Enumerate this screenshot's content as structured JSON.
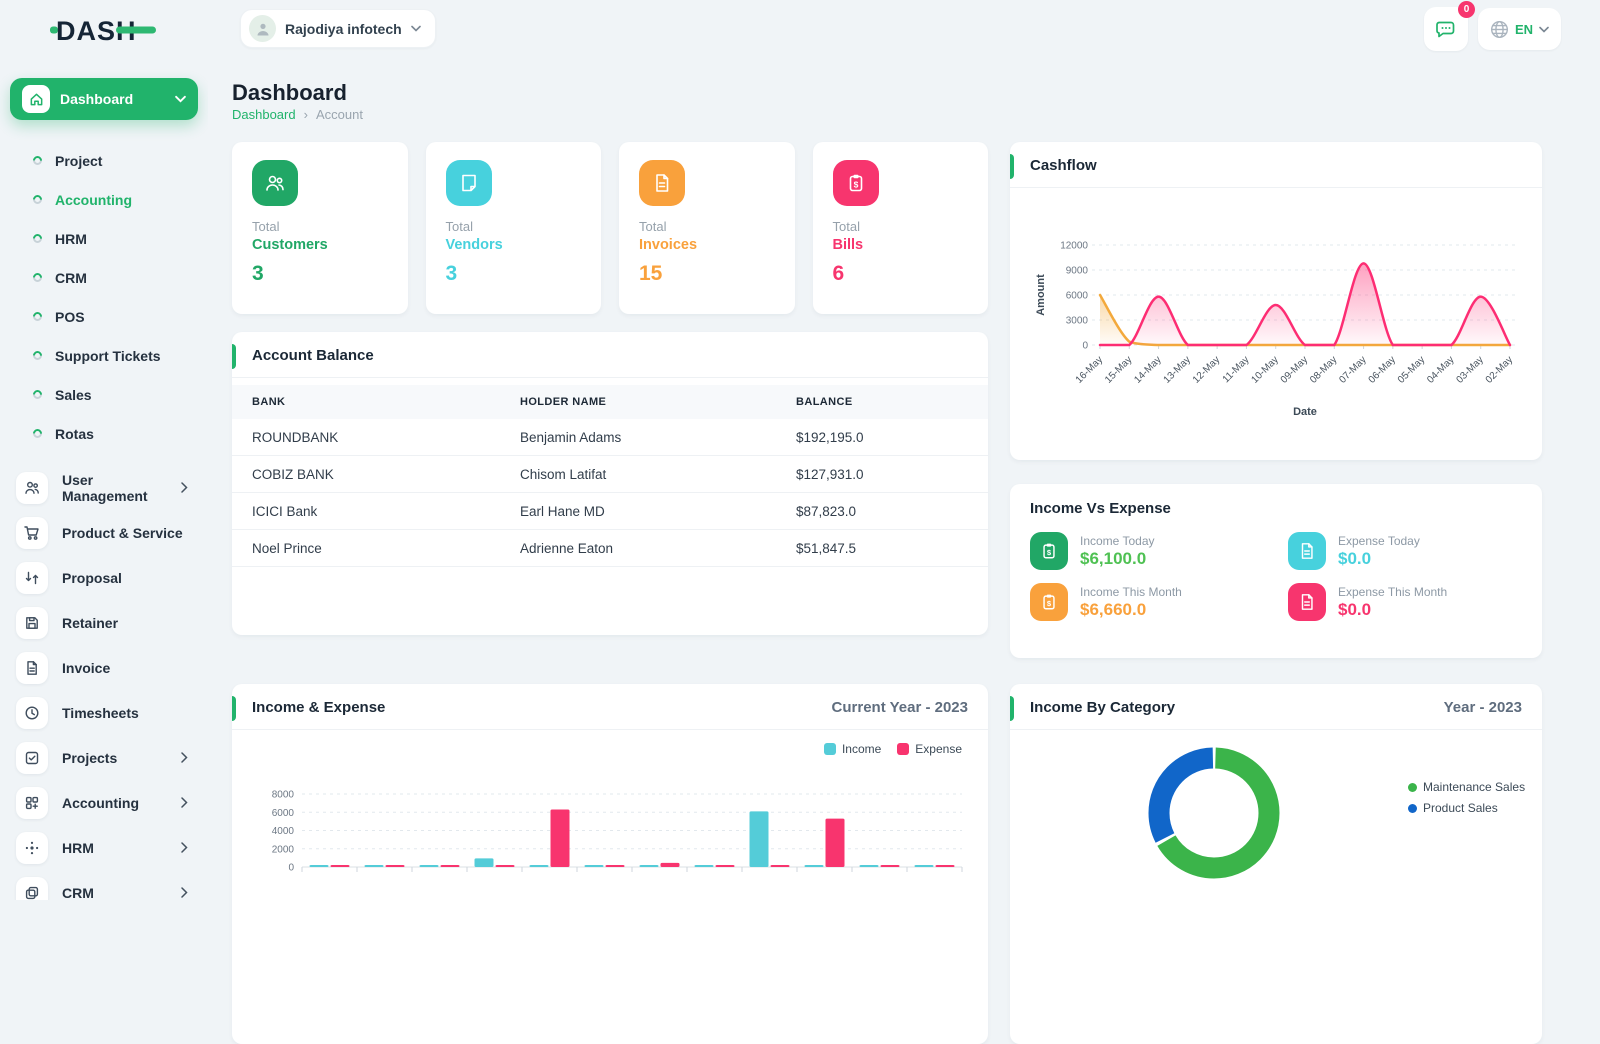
{
  "brand": {
    "name": "DASH"
  },
  "topbar": {
    "company_name": "Rajodiya infotech",
    "messages_badge": "0",
    "language": "EN"
  },
  "sidebar": {
    "dashboard_label": "Dashboard",
    "simple_items": [
      {
        "label": "Project"
      },
      {
        "label": "Accounting"
      },
      {
        "label": "HRM"
      },
      {
        "label": "CRM"
      },
      {
        "label": "POS"
      },
      {
        "label": "Support Tickets"
      },
      {
        "label": "Sales"
      },
      {
        "label": "Rotas"
      }
    ],
    "menu_items": [
      {
        "label": "User Management"
      },
      {
        "label": "Product & Service"
      },
      {
        "label": "Proposal"
      },
      {
        "label": "Retainer"
      },
      {
        "label": "Invoice"
      },
      {
        "label": "Timesheets"
      },
      {
        "label": "Projects"
      },
      {
        "label": "Accounting"
      },
      {
        "label": "HRM"
      },
      {
        "label": "CRM"
      }
    ]
  },
  "page": {
    "title": "Dashboard",
    "breadcrumb_home": "Dashboard",
    "breadcrumb_separator": "›",
    "breadcrumb_current": "Account"
  },
  "stats": [
    {
      "prefix": "Total",
      "label": "Customers",
      "value": "3",
      "color": "#21a766"
    },
    {
      "prefix": "Total",
      "label": "Vendors",
      "value": "3",
      "color": "#47d1dd"
    },
    {
      "prefix": "Total",
      "label": "Invoices",
      "value": "15",
      "color": "#f9a13c"
    },
    {
      "prefix": "Total",
      "label": "Bills",
      "value": "6",
      "color": "#f7356e"
    }
  ],
  "account_balance": {
    "title": "Account Balance",
    "columns": [
      "BANK",
      "HOLDER NAME",
      "BALANCE"
    ],
    "rows": [
      [
        "ROUNDBANK",
        "Benjamin Adams",
        "$192,195.0"
      ],
      [
        "COBIZ BANK",
        "Chisom Latifat",
        "$127,931.0"
      ],
      [
        "ICICI Bank",
        "Earl Hane MD",
        "$87,823.0"
      ],
      [
        "Noel Prince",
        "Adrienne Eaton",
        "$51,847.5"
      ]
    ]
  },
  "cashflow_card": {
    "title": "Cashflow"
  },
  "income_vs_expense": {
    "title": "Income Vs Expense",
    "items": [
      {
        "label": "Income Today",
        "value": "$6,100.0"
      },
      {
        "label": "Expense Today",
        "value": "$0.0"
      },
      {
        "label": "Income This Month",
        "value": "$6,660.0"
      },
      {
        "label": "Expense This Month",
        "value": "$0.0"
      }
    ]
  },
  "income_expense_card": {
    "title": "Income & Expense",
    "period": "Current Year - 2023",
    "legend": [
      "Income",
      "Expense"
    ]
  },
  "income_by_category_card": {
    "title": "Income By Category",
    "period": "Year - 2023",
    "legend": [
      "Maintenance Sales",
      "Product Sales"
    ]
  },
  "chart_data": [
    {
      "id": "cashflow",
      "type": "area",
      "title": "Cashflow",
      "xlabel": "Date",
      "ylabel": "Amount",
      "categories": [
        "16-May",
        "15-May",
        "14-May",
        "13-May",
        "12-May",
        "11-May",
        "10-May",
        "09-May",
        "08-May",
        "07-May",
        "06-May",
        "05-May",
        "04-May",
        "03-May",
        "02-May"
      ],
      "series": [
        {
          "name": "orange-series",
          "color": "#f3a93c",
          "values": [
            6000,
            400,
            0,
            0,
            0,
            0,
            0,
            0,
            0,
            0,
            0,
            0,
            0,
            0,
            0
          ]
        },
        {
          "name": "pink-series",
          "color": "#fd2d73",
          "values": [
            0,
            0,
            5800,
            0,
            0,
            0,
            4800,
            0,
            0,
            9800,
            0,
            0,
            0,
            5800,
            0
          ]
        }
      ],
      "ylim": [
        0,
        12000
      ],
      "yticks": [
        0,
        3000,
        6000,
        9000,
        12000
      ],
      "grid": true,
      "legend_position": "none"
    },
    {
      "id": "income-expense",
      "type": "bar",
      "title": "Income & Expense",
      "series": [
        {
          "name": "Income",
          "color": "#54ccd8",
          "values": [
            200,
            130,
            130,
            950,
            100,
            130,
            200,
            130,
            6100,
            100,
            130,
            100
          ]
        },
        {
          "name": "Expense",
          "color": "#f8346e",
          "values": [
            120,
            120,
            120,
            120,
            6300,
            120,
            450,
            120,
            120,
            5300,
            120,
            100
          ]
        }
      ],
      "ylim": [
        0,
        8000
      ],
      "yticks": [
        0,
        2000,
        4000,
        6000,
        8000
      ],
      "grid": true,
      "legend_position": "top-right"
    },
    {
      "id": "income-by-category",
      "type": "pie",
      "title": "Income By Category",
      "labels": [
        "Maintenance Sales",
        "Product Sales"
      ],
      "values": [
        67,
        33
      ],
      "colors": [
        "#3bb44a",
        "#1166c9"
      ],
      "legend_position": "right"
    }
  ]
}
